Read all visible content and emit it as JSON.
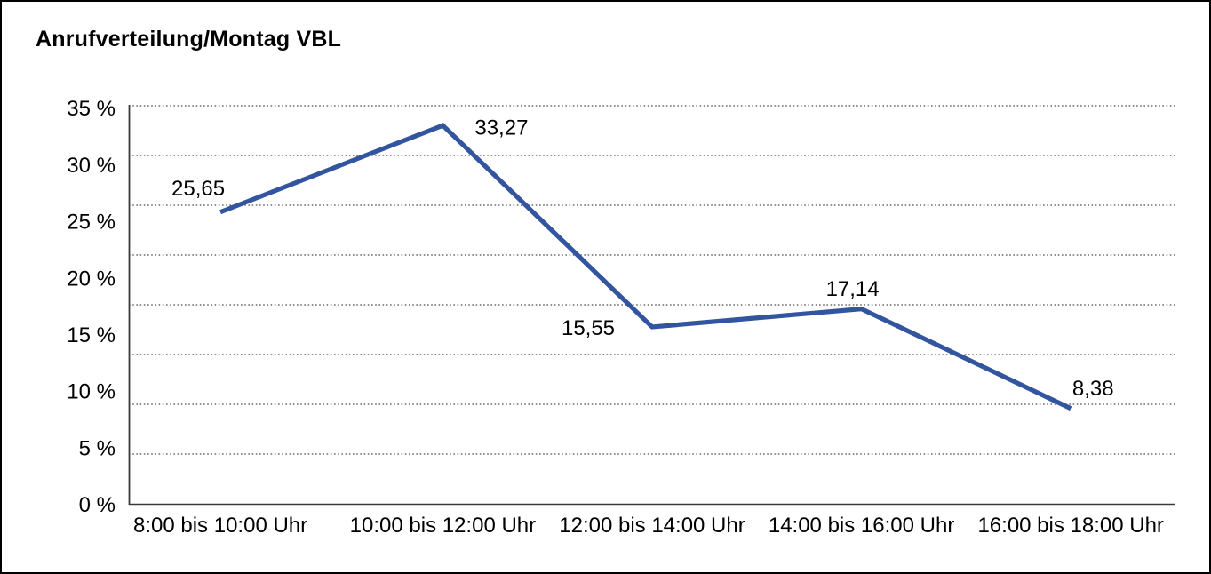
{
  "window": {
    "title": "Anrufverteilung/Montag VBL"
  },
  "colors": {
    "line": "#33549E",
    "axis": "#3a3a3a",
    "gridline": "#4d4d4d",
    "text": "#000000",
    "background": "#ffffff",
    "border": "#000000"
  },
  "chart_data": {
    "type": "line",
    "title": "Anrufverteilung/Montag VBL",
    "categories": [
      "8:00 bis 10:00 Uhr",
      "10:00 bis 12:00 Uhr",
      "12:00 bis 14:00 Uhr",
      "14:00 bis 16:00 Uhr",
      "16:00 bis 18:00 Uhr"
    ],
    "values": [
      25.65,
      33.27,
      15.55,
      17.14,
      8.38
    ],
    "value_labels": [
      "25,65",
      "33,27",
      "15,55",
      "17,14",
      "8,38"
    ],
    "series_name": "Anrufverteilung Montag VBL",
    "xlabel": "",
    "ylabel": "",
    "ylim": [
      0,
      35
    ],
    "y_tick_step": 5,
    "y_tick_labels": [
      "35 %",
      "30 %",
      "25 %",
      "20 %",
      "15 %",
      "10 %",
      "5 %",
      "0 %"
    ],
    "grid": "horizontal-dotted",
    "legend": "none"
  }
}
